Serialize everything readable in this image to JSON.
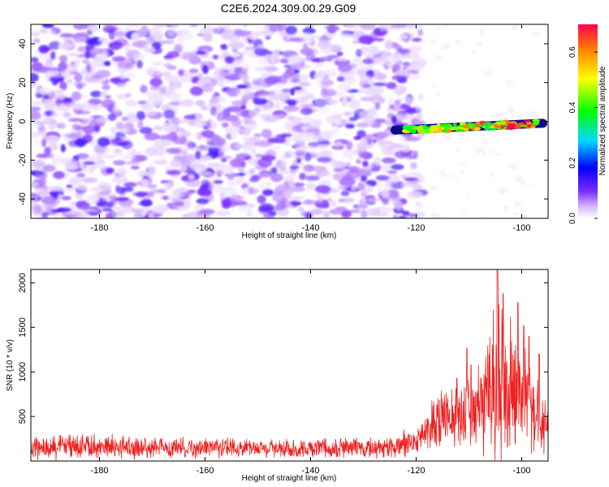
{
  "title": "C2E6.2024.309.00.29.G09",
  "colors": {
    "series_line": "#ee2020",
    "noise_purple": "#6a14e6",
    "background": "#ffffff"
  },
  "chart_data": [
    {
      "type": "heatmap",
      "xlabel": "Height of straight line (km)",
      "ylabel": "Frequency (Hz)",
      "xlim": [
        -193,
        -95
      ],
      "ylim": [
        -50,
        50
      ],
      "x_ticks": [
        -180,
        -160,
        -140,
        -120,
        -100
      ],
      "y_ticks": [
        -40,
        -20,
        0,
        20,
        40
      ],
      "x_tick_labels": [
        "-180",
        "-160",
        "-140",
        "-120",
        "-100"
      ],
      "y_tick_labels": [
        "-40",
        "-20",
        "0",
        "20",
        "40"
      ],
      "grid": false,
      "colorbar": {
        "label": "Normalized spectral amplitude",
        "range": [
          0.0,
          0.7
        ],
        "ticks": [
          0.0,
          0.2,
          0.4,
          0.6
        ],
        "tick_labels": [
          "0.0",
          "0.2",
          "0.4",
          "0.6"
        ],
        "colormap": "rainbow (white-violet-blue-cyan-green-yellow-red)"
      },
      "features": [
        {
          "name": "noise",
          "x_range": [
            -193,
            -121
          ],
          "freq_range": [
            -50,
            50
          ],
          "amplitude_range": [
            0.0,
            0.12
          ]
        },
        {
          "name": "signal_trace",
          "x_range": [
            -124,
            -96
          ],
          "freq_start": -4.5,
          "freq_end": -1.0,
          "amplitude_range": [
            0.15,
            0.7
          ]
        }
      ]
    },
    {
      "type": "line",
      "xlabel": "Height of straight line (km)",
      "ylabel": "SNR (10 * v/v)",
      "xlim": [
        -193,
        -95
      ],
      "ylim": [
        0,
        2150
      ],
      "x_ticks": [
        -180,
        -160,
        -140,
        -120,
        -100
      ],
      "y_ticks": [
        500,
        1000,
        1500,
        2000
      ],
      "x_tick_labels": [
        "-180",
        "-160",
        "-140",
        "-120",
        "-100"
      ],
      "y_tick_labels": [
        "500",
        "1000",
        "1500",
        "2000"
      ],
      "grid": false,
      "envelope": [
        {
          "x": -193,
          "mean": 150,
          "spread": 140
        },
        {
          "x": -180,
          "mean": 160,
          "spread": 160
        },
        {
          "x": -160,
          "mean": 150,
          "spread": 130
        },
        {
          "x": -140,
          "mean": 140,
          "spread": 120
        },
        {
          "x": -125,
          "mean": 150,
          "spread": 130
        },
        {
          "x": -120,
          "mean": 220,
          "spread": 200
        },
        {
          "x": -117,
          "mean": 420,
          "spread": 350
        },
        {
          "x": -112,
          "mean": 520,
          "spread": 450
        },
        {
          "x": -108,
          "mean": 620,
          "spread": 550
        },
        {
          "x": -104.5,
          "mean": 850,
          "spread": 1250
        },
        {
          "x": -101,
          "mean": 750,
          "spread": 800
        },
        {
          "x": -98,
          "mean": 600,
          "spread": 650
        },
        {
          "x": -95,
          "mean": 300,
          "spread": 300
        }
      ],
      "peaks": [
        {
          "x": -104.6,
          "y": 2150
        },
        {
          "x": -103.5,
          "y": 1880
        },
        {
          "x": -100.7,
          "y": 1780
        },
        {
          "x": -98.6,
          "y": 1400
        },
        {
          "x": -99.6,
          "y": 1520
        },
        {
          "x": -110.4,
          "y": 1270
        },
        {
          "x": -109.6,
          "y": 1080
        },
        {
          "x": -112.3,
          "y": 930
        },
        {
          "x": -96.7,
          "y": 1200
        }
      ]
    }
  ]
}
